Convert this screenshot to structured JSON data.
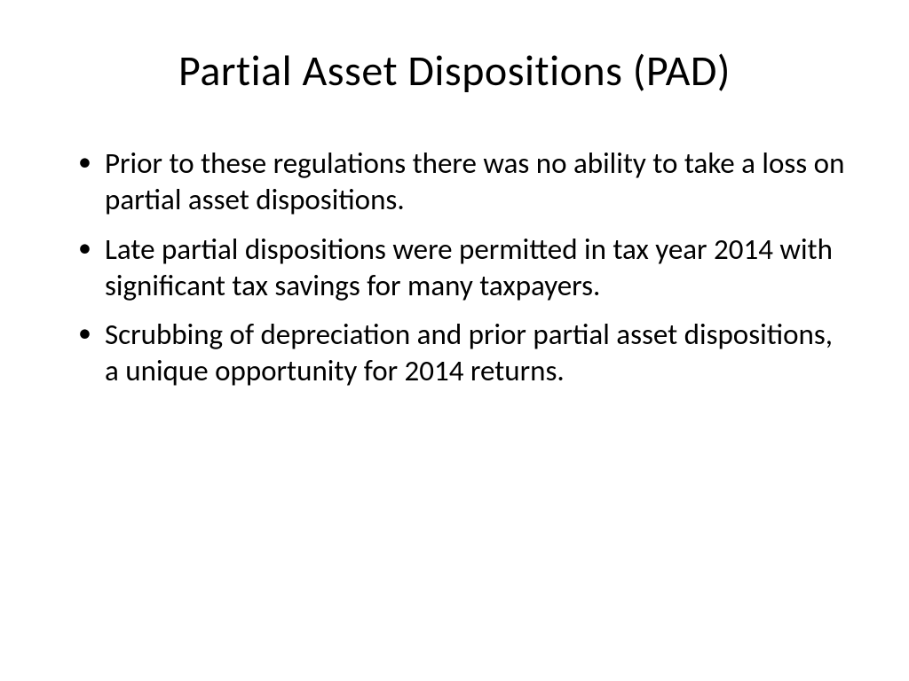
{
  "slide": {
    "title": "Partial Asset Dispositions (PAD)",
    "bullets": [
      "Prior to these regulations there was no ability to take a loss on partial asset dispositions.",
      "Late partial dispositions were permitted in tax year 2014 with significant tax savings for many taxpayers.",
      "Scrubbing of depreciation and prior partial asset dispositions, a unique opportunity for 2014 returns."
    ],
    "background_color": "#ffffff",
    "text_color": "#000000",
    "title_fontsize": 48,
    "body_fontsize": 33,
    "font_family": "Calibri"
  }
}
